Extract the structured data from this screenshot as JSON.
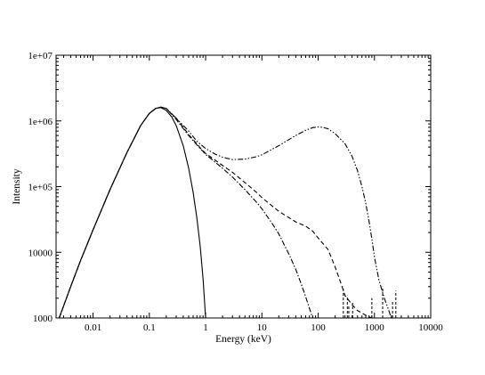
{
  "chart_data": {
    "type": "line",
    "title": "",
    "xlabel": "Energy (keV)",
    "ylabel": "Intensity",
    "xscale": "log",
    "yscale": "log",
    "xlim": [
      0.0022,
      10000
    ],
    "ylim": [
      1000,
      10000000
    ],
    "x_ticks": [
      {
        "value": 0.01,
        "label": "0.01"
      },
      {
        "value": 0.1,
        "label": "0.1"
      },
      {
        "value": 1,
        "label": "1"
      },
      {
        "value": 10,
        "label": "10"
      },
      {
        "value": 100,
        "label": "100"
      },
      {
        "value": 1000,
        "label": "1000"
      },
      {
        "value": 10000,
        "label": "10000"
      }
    ],
    "y_ticks": [
      {
        "value": 1000,
        "label": "1000"
      },
      {
        "value": 10000,
        "label": "10000"
      },
      {
        "value": 100000,
        "label": "1e+05"
      },
      {
        "value": 1000000,
        "label": "1e+06"
      },
      {
        "value": 10000000,
        "label": "1e+07"
      }
    ],
    "grid": false,
    "legend": "none",
    "series": [
      {
        "style": "solid",
        "x": [
          0.0025,
          0.004,
          0.006,
          0.01,
          0.02,
          0.04,
          0.07,
          0.1,
          0.13,
          0.16,
          0.2,
          0.25,
          0.3,
          0.4,
          0.5,
          0.6,
          0.7,
          0.8,
          0.9,
          1.0
        ],
        "y": [
          1000,
          3000,
          7500,
          22000,
          90000,
          330000,
          850000,
          1300000,
          1550000,
          1600000,
          1450000,
          1150000,
          850000,
          420000,
          190000,
          82000,
          33000,
          12500,
          4000,
          1000
        ]
      },
      {
        "style": "dashed",
        "x": [
          0.0025,
          0.004,
          0.006,
          0.01,
          0.02,
          0.04,
          0.07,
          0.1,
          0.13,
          0.16,
          0.2,
          0.3,
          0.5,
          0.8,
          1.0,
          2,
          3,
          5,
          8,
          10,
          20,
          40,
          60,
          80,
          100,
          150,
          200,
          250,
          300,
          400,
          500,
          700,
          900
        ],
        "y": [
          1000,
          3000,
          7500,
          22000,
          90000,
          330000,
          850000,
          1300000,
          1550000,
          1620000,
          1550000,
          1100000,
          620000,
          390000,
          320000,
          210000,
          165000,
          115000,
          82000,
          68000,
          42000,
          29000,
          25000,
          21000,
          16500,
          11000,
          6000,
          3500,
          2200,
          1600,
          1300,
          1100,
          1000
        ]
      },
      {
        "style": "dash-dot",
        "x": [
          0.0025,
          0.004,
          0.006,
          0.01,
          0.02,
          0.04,
          0.07,
          0.1,
          0.13,
          0.16,
          0.2,
          0.3,
          0.5,
          0.8,
          1.0,
          2,
          3,
          5,
          8,
          10,
          15,
          20,
          30,
          40,
          50,
          60,
          70,
          80
        ],
        "y": [
          1000,
          3000,
          7500,
          22000,
          90000,
          330000,
          850000,
          1300000,
          1550000,
          1620000,
          1550000,
          1050000,
          600000,
          380000,
          310000,
          190000,
          140000,
          90000,
          58000,
          46000,
          28000,
          19000,
          9500,
          5500,
          3300,
          2100,
          1400,
          1000
        ]
      },
      {
        "style": "dash-dot-dot",
        "x": [
          0.0025,
          0.004,
          0.006,
          0.01,
          0.02,
          0.04,
          0.07,
          0.1,
          0.13,
          0.16,
          0.2,
          0.3,
          0.5,
          0.7,
          1.0,
          1.5,
          2,
          3,
          5,
          8,
          10,
          20,
          40,
          60,
          80,
          100,
          120,
          150,
          200,
          300,
          400,
          500,
          600,
          700,
          800,
          900,
          1000,
          1200,
          1500,
          1800,
          2000
        ],
        "y": [
          1000,
          3000,
          7500,
          22000,
          90000,
          330000,
          850000,
          1300000,
          1550000,
          1620000,
          1550000,
          1100000,
          700000,
          490000,
          380000,
          310000,
          280000,
          258000,
          262000,
          285000,
          305000,
          420000,
          600000,
          720000,
          790000,
          810000,
          800000,
          760000,
          640000,
          450000,
          290000,
          175000,
          100000,
          56000,
          30000,
          16000,
          8500,
          3800,
          2000,
          1300,
          1000
        ]
      }
    ]
  }
}
